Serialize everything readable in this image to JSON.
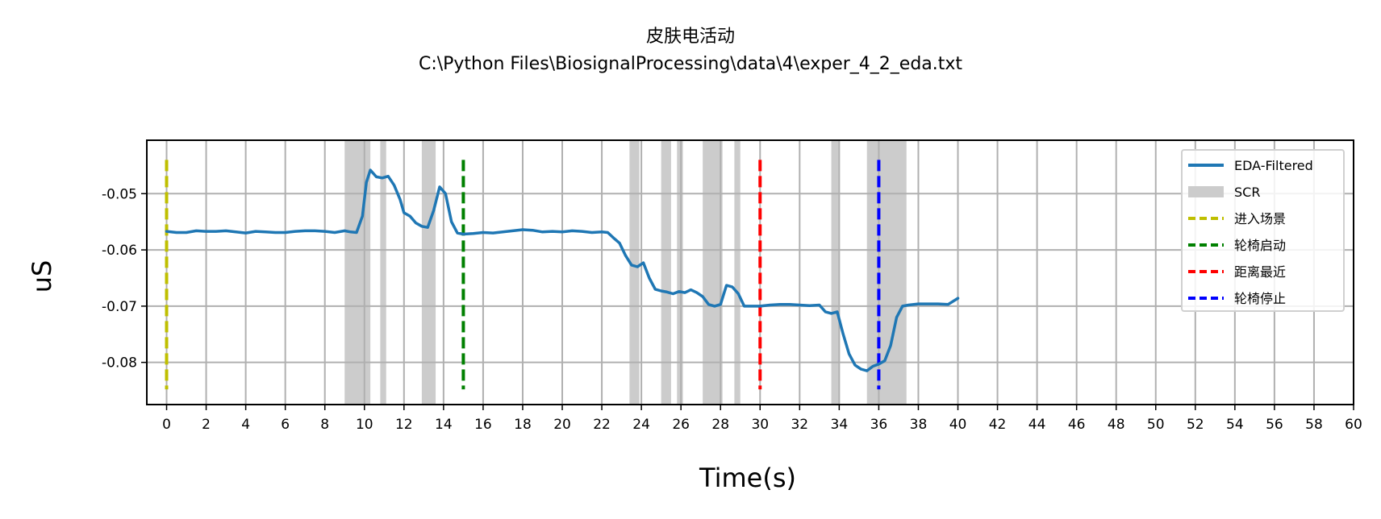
{
  "chart_data": {
    "type": "line",
    "title": "皮肤电活动",
    "subtitle": "C:\\Python Files\\BiosignalProcessing\\data\\4\\exper_4_2_eda.txt",
    "xlabel": "Time(s)",
    "ylabel": "uS",
    "xlim": [
      -1,
      60
    ],
    "ylim": [
      -0.0875,
      -0.0405
    ],
    "x_ticks": [
      0,
      2,
      4,
      6,
      8,
      10,
      12,
      14,
      16,
      18,
      20,
      22,
      24,
      26,
      28,
      30,
      32,
      34,
      36,
      38,
      40,
      42,
      44,
      46,
      48,
      50,
      52,
      54,
      56,
      58,
      60
    ],
    "y_ticks": [
      -0.08,
      -0.07,
      -0.06,
      -0.05
    ],
    "y_tick_labels": [
      "-0.08",
      "-0.07",
      "-0.06",
      "-0.05"
    ],
    "grid": true,
    "legend_position": "top-right",
    "legend": [
      "EDA-Filtered",
      "SCR",
      "进入场景",
      "轮椅启动",
      "距离最近",
      "轮椅停止"
    ],
    "series": [
      {
        "name": "EDA-Filtered",
        "color": "#1f77b4",
        "x": [
          0,
          0.5,
          1,
          1.5,
          2,
          2.5,
          3,
          3.5,
          4,
          4.5,
          5,
          5.5,
          6,
          6.5,
          7,
          7.5,
          8,
          8.5,
          9,
          9.3,
          9.6,
          9.9,
          10.1,
          10.3,
          10.6,
          10.9,
          11.2,
          11.5,
          11.8,
          12,
          12.3,
          12.6,
          12.9,
          13.2,
          13.5,
          13.8,
          14.1,
          14.4,
          14.7,
          15,
          15.5,
          16,
          16.5,
          17,
          17.5,
          18,
          18.5,
          19,
          19.5,
          20,
          20.5,
          21,
          21.5,
          22,
          22.3,
          22.6,
          22.9,
          23.2,
          23.5,
          23.8,
          24.1,
          24.4,
          24.7,
          25,
          25.3,
          25.6,
          25.9,
          26.2,
          26.5,
          26.8,
          27.1,
          27.4,
          27.7,
          28,
          28.3,
          28.6,
          28.9,
          29.2,
          29.5,
          30,
          30.5,
          31,
          31.5,
          32,
          32.5,
          33,
          33.3,
          33.6,
          33.9,
          34.2,
          34.5,
          34.8,
          35.1,
          35.4,
          35.7,
          36,
          36.3,
          36.6,
          36.9,
          37.2,
          37.5,
          38,
          38.5,
          39,
          39.5,
          40
        ],
        "values": [
          -0.0567,
          -0.0569,
          -0.0569,
          -0.0566,
          -0.0567,
          -0.0567,
          -0.0566,
          -0.0568,
          -0.057,
          -0.0567,
          -0.0568,
          -0.0569,
          -0.0569,
          -0.0567,
          -0.0566,
          -0.0566,
          -0.0567,
          -0.0569,
          -0.0566,
          -0.0568,
          -0.0569,
          -0.054,
          -0.048,
          -0.0458,
          -0.047,
          -0.0472,
          -0.0469,
          -0.0485,
          -0.051,
          -0.0534,
          -0.054,
          -0.0552,
          -0.0558,
          -0.056,
          -0.053,
          -0.0488,
          -0.05,
          -0.055,
          -0.057,
          -0.0572,
          -0.0571,
          -0.0569,
          -0.057,
          -0.0568,
          -0.0566,
          -0.0564,
          -0.0565,
          -0.0568,
          -0.0567,
          -0.0568,
          -0.0566,
          -0.0567,
          -0.0569,
          -0.0568,
          -0.0569,
          -0.0579,
          -0.0588,
          -0.061,
          -0.0627,
          -0.063,
          -0.0623,
          -0.065,
          -0.067,
          -0.0673,
          -0.0675,
          -0.0678,
          -0.0674,
          -0.0676,
          -0.0671,
          -0.0676,
          -0.0683,
          -0.0697,
          -0.07,
          -0.0697,
          -0.0663,
          -0.0666,
          -0.0678,
          -0.07,
          -0.07,
          -0.07,
          -0.0698,
          -0.0697,
          -0.0697,
          -0.0698,
          -0.0699,
          -0.0698,
          -0.071,
          -0.0713,
          -0.071,
          -0.075,
          -0.0785,
          -0.0805,
          -0.0812,
          -0.0815,
          -0.0807,
          -0.0803,
          -0.0797,
          -0.077,
          -0.072,
          -0.07,
          -0.0698,
          -0.0696,
          -0.0696,
          -0.0696,
          -0.0697,
          -0.0686
        ]
      }
    ],
    "scr_regions": [
      [
        9.0,
        10.3
      ],
      [
        10.8,
        11.1
      ],
      [
        12.9,
        13.6
      ],
      [
        23.4,
        23.9
      ],
      [
        25.0,
        25.5
      ],
      [
        25.8,
        26.1
      ],
      [
        27.1,
        28.1
      ],
      [
        28.7,
        29.0
      ],
      [
        33.6,
        34.0
      ],
      [
        35.4,
        37.4
      ]
    ],
    "events": [
      {
        "name": "进入场景",
        "x": 0,
        "color": "#bfbf00"
      },
      {
        "name": "轮椅启动",
        "x": 15,
        "color": "#008000"
      },
      {
        "name": "距离最近",
        "x": 30,
        "color": "#ff0000"
      },
      {
        "name": "轮椅停止",
        "x": 36,
        "color": "#0000ff"
      }
    ],
    "event_y_range": [
      -0.0848,
      -0.044
    ],
    "scr_color": "#cccccc",
    "grid_color": "#b0b0b0"
  }
}
